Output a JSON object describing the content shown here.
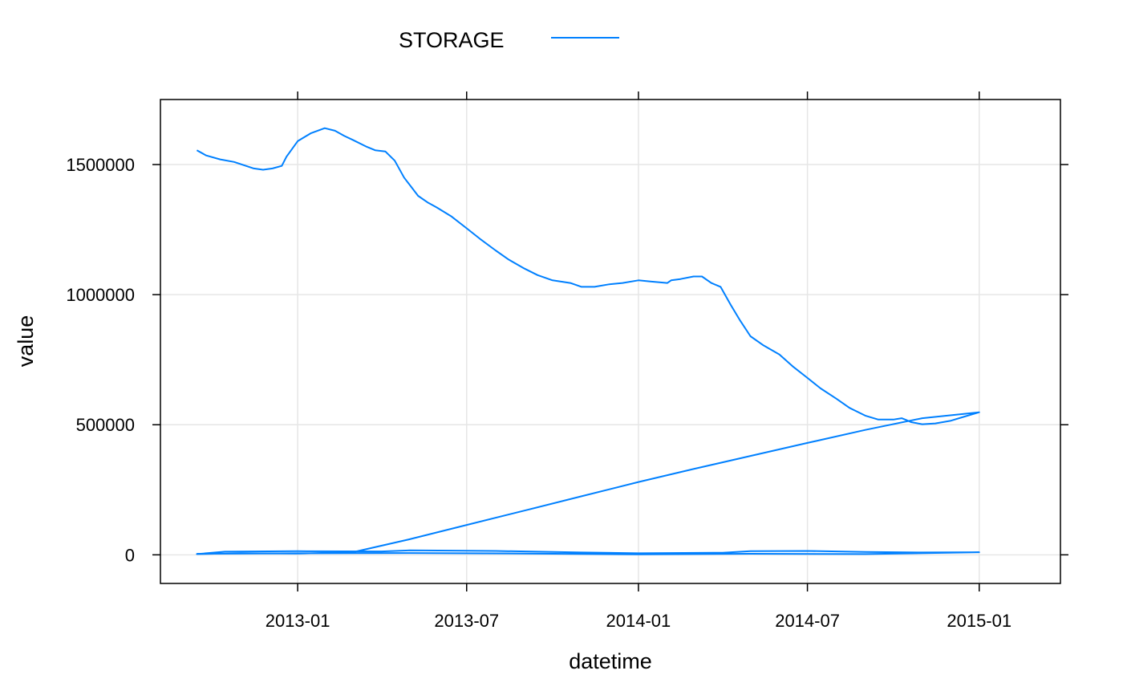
{
  "chart_data": {
    "type": "line",
    "title": "",
    "xlabel": "datetime",
    "ylabel": "value",
    "legend": {
      "position": "top",
      "entries": [
        "STORAGE"
      ]
    },
    "line_color": "#0080ff",
    "grid": true,
    "x_ticks": [
      "2013-01",
      "2013-07",
      "2014-01",
      "2014-07",
      "2015-01"
    ],
    "y_ticks": [
      "0",
      "500000",
      "1000000",
      "1500000"
    ],
    "xlim": [
      "2012-08-07",
      "2015-03-29"
    ],
    "ylim": [
      -110000,
      1750000
    ],
    "series": [
      {
        "name": "STORAGE",
        "x": [
          "2012-09-15",
          "2012-09-25",
          "2012-10-10",
          "2012-10-25",
          "2012-11-15",
          "2012-11-25",
          "2012-12-05",
          "2012-12-15",
          "2012-12-20",
          "2013-01-01",
          "2013-01-15",
          "2013-01-30",
          "2013-02-10",
          "2013-02-20",
          "2013-03-01",
          "2013-03-15",
          "2013-03-25",
          "2013-04-05",
          "2013-04-15",
          "2013-04-25",
          "2013-05-10",
          "2013-05-20",
          "2013-05-30",
          "2013-06-15",
          "2013-07-01",
          "2013-07-15",
          "2013-08-01",
          "2013-08-15",
          "2013-09-01",
          "2013-09-15",
          "2013-10-01",
          "2013-10-20",
          "2013-11-01",
          "2013-11-15",
          "2013-12-01",
          "2013-12-15",
          "2014-01-01",
          "2014-01-15",
          "2014-02-01",
          "2014-02-05",
          "2014-02-15",
          "2014-03-01",
          "2014-03-10",
          "2014-03-20",
          "2014-03-30",
          "2014-04-10",
          "2014-04-20",
          "2014-05-01",
          "2014-05-15",
          "2014-06-01",
          "2014-06-15",
          "2014-07-01",
          "2014-07-15",
          "2014-08-01",
          "2014-08-15",
          "2014-09-01",
          "2014-09-15",
          "2014-10-01",
          "2014-10-10",
          "2014-10-15",
          "2014-10-20",
          "2014-11-01",
          "2014-11-15",
          "2014-12-01",
          "2014-12-15",
          "2015-01-01",
          "2014-11-01",
          "2014-09-01",
          "2014-07-01",
          "2014-05-01",
          "2014-03-01",
          "2014-01-01",
          "2013-11-01",
          "2013-09-01",
          "2013-07-01",
          "2013-05-01",
          "2013-03-01",
          "2013-01-01",
          "2012-11-01",
          "2012-09-15",
          "2012-10-15",
          "2013-01-01",
          "2013-04-01",
          "2013-05-01",
          "2013-08-01",
          "2013-11-01",
          "2014-01-01",
          "2014-04-01",
          "2014-05-01",
          "2014-07-01",
          "2014-09-01",
          "2014-11-01",
          "2015-01-01",
          "2014-09-01",
          "2014-05-01",
          "2014-01-01",
          "2013-09-01",
          "2013-05-01",
          "2013-01-01",
          "2012-09-15"
        ],
        "y": [
          1555000,
          1535000,
          1520000,
          1510000,
          1485000,
          1480000,
          1485000,
          1495000,
          1530000,
          1590000,
          1620000,
          1640000,
          1630000,
          1610000,
          1595000,
          1570000,
          1555000,
          1550000,
          1515000,
          1450000,
          1380000,
          1355000,
          1335000,
          1300000,
          1255000,
          1215000,
          1170000,
          1135000,
          1100000,
          1075000,
          1055000,
          1045000,
          1030000,
          1030000,
          1040000,
          1045000,
          1055000,
          1050000,
          1045000,
          1055000,
          1060000,
          1070000,
          1070000,
          1045000,
          1030000,
          960000,
          900000,
          840000,
          805000,
          770000,
          725000,
          680000,
          640000,
          600000,
          565000,
          535000,
          520000,
          520000,
          525000,
          518000,
          510000,
          502000,
          505000,
          515000,
          530000,
          548000,
          525000,
          480000,
          430000,
          380000,
          330000,
          280000,
          225000,
          170000,
          115000,
          60000,
          10000,
          5000,
          6000,
          3000,
          12000,
          14000,
          13000,
          17000,
          15000,
          9000,
          6000,
          8000,
          14000,
          15000,
          11000,
          9000,
          10000,
          3000,
          4000,
          2000,
          5000,
          7000,
          6000,
          4000
        ]
      }
    ]
  }
}
